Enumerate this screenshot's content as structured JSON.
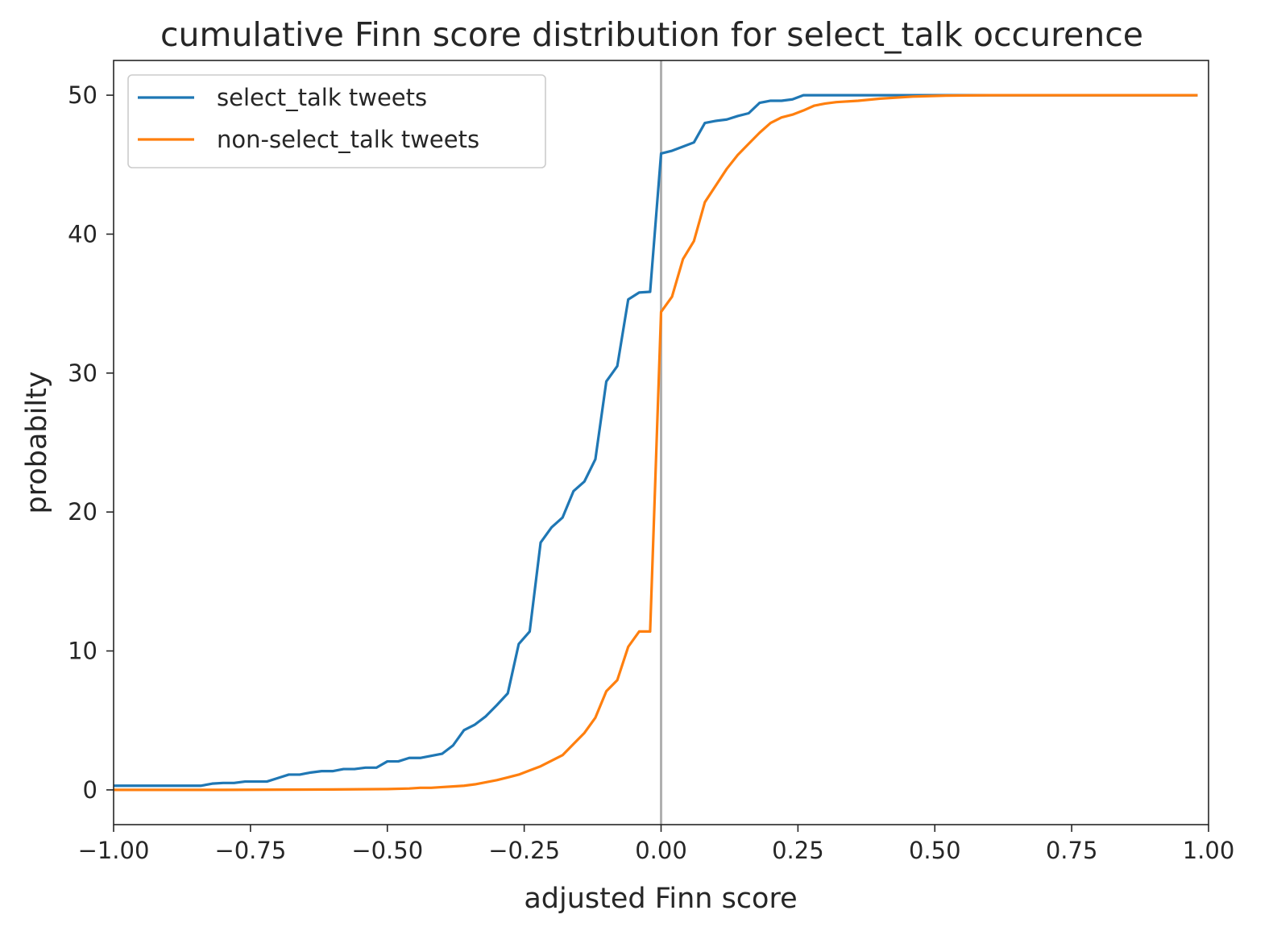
{
  "chart_data": {
    "type": "line",
    "title": "cumulative Finn score distribution for select_talk occurence",
    "xlabel": "adjusted Finn score",
    "ylabel": "probabilty",
    "xlim": [
      -1.0,
      1.0
    ],
    "ylim": [
      -2.5,
      52.5
    ],
    "xticks": [
      -1.0,
      -0.75,
      -0.5,
      -0.25,
      0.0,
      0.25,
      0.5,
      0.75,
      1.0
    ],
    "xtick_labels": [
      "−1.00",
      "−0.75",
      "−0.50",
      "−0.25",
      "0.00",
      "0.25",
      "0.50",
      "0.75",
      "1.00"
    ],
    "yticks": [
      0,
      10,
      20,
      30,
      40,
      50
    ],
    "ytick_labels": [
      "0",
      "10",
      "20",
      "30",
      "40",
      "50"
    ],
    "vline": {
      "x": 0.0,
      "color": "#b0b0b0"
    },
    "grid": false,
    "legend_position": "upper-left",
    "series": [
      {
        "name": "select_talk tweets",
        "color": "#1f77b4",
        "points": [
          [
            -1.0,
            0.3
          ],
          [
            -0.84,
            0.3
          ],
          [
            -0.82,
            0.45
          ],
          [
            -0.8,
            0.5
          ],
          [
            -0.78,
            0.5
          ],
          [
            -0.76,
            0.6
          ],
          [
            -0.72,
            0.6
          ],
          [
            -0.7,
            0.85
          ],
          [
            -0.68,
            1.1
          ],
          [
            -0.66,
            1.1
          ],
          [
            -0.64,
            1.25
          ],
          [
            -0.62,
            1.35
          ],
          [
            -0.6,
            1.35
          ],
          [
            -0.58,
            1.5
          ],
          [
            -0.56,
            1.5
          ],
          [
            -0.54,
            1.6
          ],
          [
            -0.52,
            1.6
          ],
          [
            -0.5,
            2.05
          ],
          [
            -0.48,
            2.05
          ],
          [
            -0.46,
            2.3
          ],
          [
            -0.44,
            2.3
          ],
          [
            -0.42,
            2.45
          ],
          [
            -0.4,
            2.6
          ],
          [
            -0.38,
            3.2
          ],
          [
            -0.36,
            4.3
          ],
          [
            -0.34,
            4.7
          ],
          [
            -0.32,
            5.3
          ],
          [
            -0.3,
            6.1
          ],
          [
            -0.28,
            6.95
          ],
          [
            -0.26,
            10.5
          ],
          [
            -0.24,
            11.4
          ],
          [
            -0.22,
            17.8
          ],
          [
            -0.2,
            18.9
          ],
          [
            -0.18,
            19.6
          ],
          [
            -0.16,
            21.5
          ],
          [
            -0.14,
            22.2
          ],
          [
            -0.12,
            23.8
          ],
          [
            -0.1,
            29.4
          ],
          [
            -0.08,
            30.5
          ],
          [
            -0.06,
            35.3
          ],
          [
            -0.04,
            35.8
          ],
          [
            -0.02,
            35.85
          ],
          [
            0.0,
            45.8
          ],
          [
            0.02,
            46.0
          ],
          [
            0.04,
            46.3
          ],
          [
            0.06,
            46.6
          ],
          [
            0.08,
            48.0
          ],
          [
            0.1,
            48.15
          ],
          [
            0.12,
            48.25
          ],
          [
            0.14,
            48.5
          ],
          [
            0.16,
            48.7
          ],
          [
            0.18,
            49.45
          ],
          [
            0.2,
            49.6
          ],
          [
            0.22,
            49.6
          ],
          [
            0.24,
            49.7
          ],
          [
            0.26,
            50.0
          ],
          [
            0.98,
            50.0
          ]
        ]
      },
      {
        "name": "non-select_talk tweets",
        "color": "#ff7f0e",
        "points": [
          [
            -1.0,
            0.0
          ],
          [
            -0.8,
            0.0
          ],
          [
            -0.6,
            0.03
          ],
          [
            -0.5,
            0.06
          ],
          [
            -0.46,
            0.1
          ],
          [
            -0.44,
            0.15
          ],
          [
            -0.42,
            0.15
          ],
          [
            -0.4,
            0.2
          ],
          [
            -0.38,
            0.25
          ],
          [
            -0.36,
            0.3
          ],
          [
            -0.34,
            0.4
          ],
          [
            -0.32,
            0.55
          ],
          [
            -0.3,
            0.7
          ],
          [
            -0.28,
            0.9
          ],
          [
            -0.26,
            1.1
          ],
          [
            -0.24,
            1.4
          ],
          [
            -0.22,
            1.7
          ],
          [
            -0.2,
            2.1
          ],
          [
            -0.18,
            2.5
          ],
          [
            -0.16,
            3.3
          ],
          [
            -0.14,
            4.1
          ],
          [
            -0.12,
            5.2
          ],
          [
            -0.1,
            7.1
          ],
          [
            -0.08,
            7.9
          ],
          [
            -0.06,
            10.3
          ],
          [
            -0.04,
            11.4
          ],
          [
            -0.02,
            11.4
          ],
          [
            0.0,
            34.4
          ],
          [
            0.02,
            35.5
          ],
          [
            0.04,
            38.2
          ],
          [
            0.06,
            39.5
          ],
          [
            0.08,
            42.3
          ],
          [
            0.1,
            43.5
          ],
          [
            0.12,
            44.7
          ],
          [
            0.14,
            45.7
          ],
          [
            0.16,
            46.5
          ],
          [
            0.18,
            47.3
          ],
          [
            0.2,
            48.0
          ],
          [
            0.22,
            48.4
          ],
          [
            0.24,
            48.6
          ],
          [
            0.26,
            48.9
          ],
          [
            0.28,
            49.25
          ],
          [
            0.3,
            49.4
          ],
          [
            0.32,
            49.5
          ],
          [
            0.36,
            49.6
          ],
          [
            0.4,
            49.75
          ],
          [
            0.46,
            49.9
          ],
          [
            0.52,
            49.97
          ],
          [
            0.6,
            50.0
          ],
          [
            0.98,
            50.0
          ]
        ]
      }
    ]
  }
}
